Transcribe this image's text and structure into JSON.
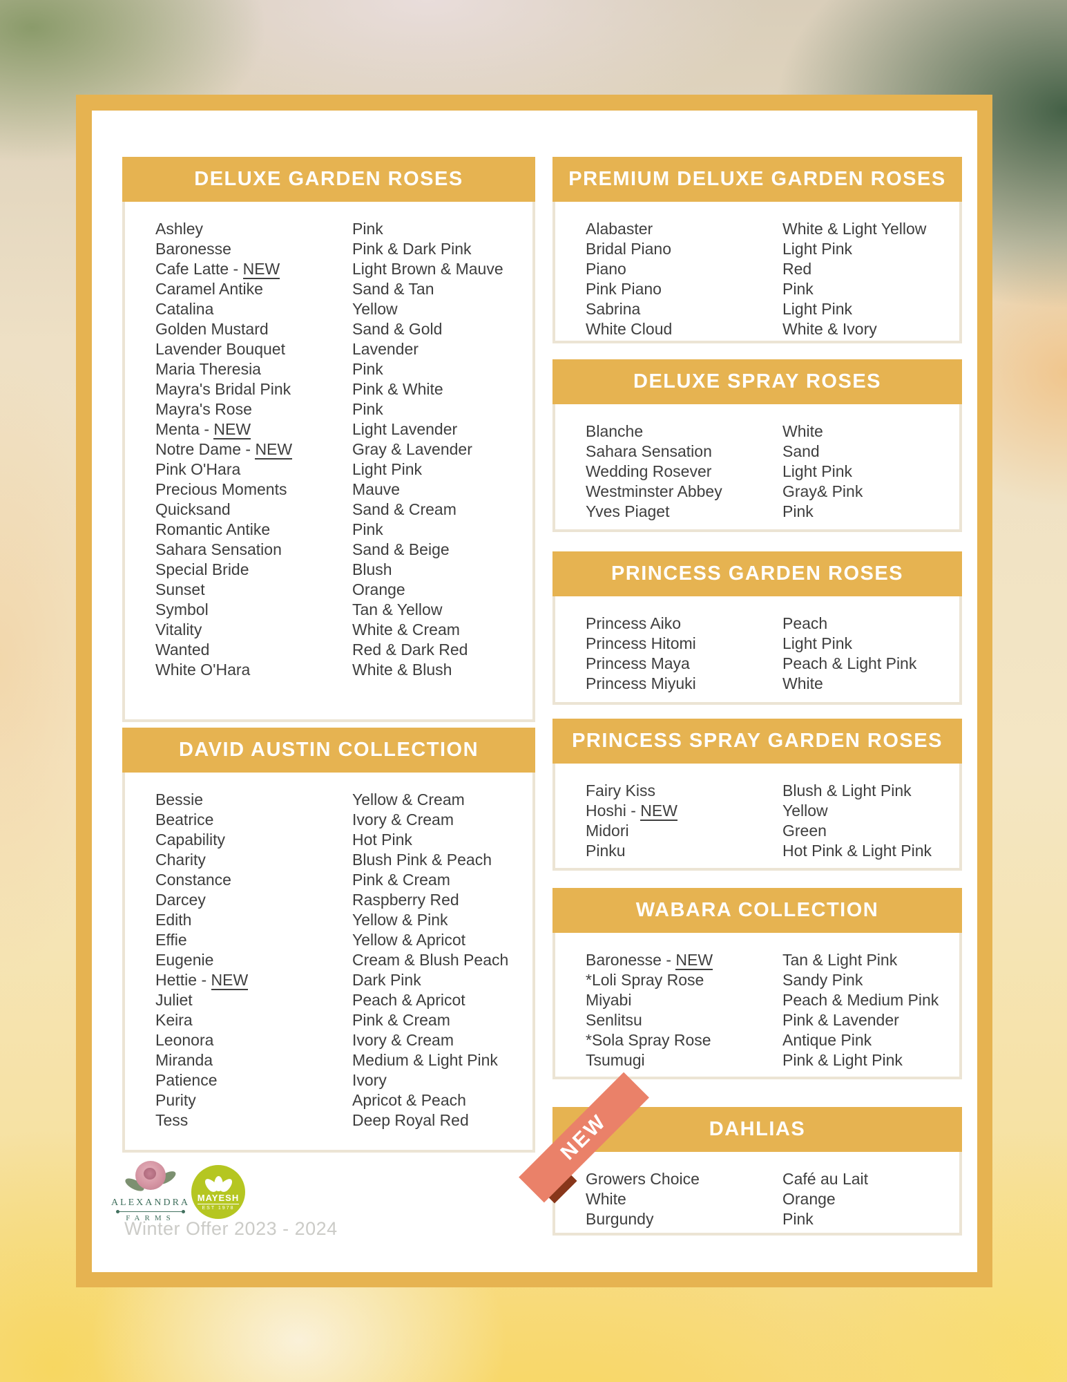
{
  "labels": {
    "new": "NEW"
  },
  "footer": {
    "note": "Winter Offer 2023 - 2024"
  },
  "logos": {
    "alexandra": {
      "line1": "ALEXANDRA",
      "line2": "FARMS"
    },
    "mayesh": {
      "name": "MAYESH",
      "est": "EST 1978"
    }
  },
  "ribbon": {
    "label": "NEW"
  },
  "theme": {
    "gold": "#E6B351",
    "box_border": "#ECE4D4",
    "body_text": "#3E3E3E",
    "header_text": "#FFFFFF",
    "ribbon_salmon": "#EA8169",
    "ribbon_fold": "#88361A",
    "footer_gray": "#CBCBC7",
    "mayesh_green": "#B5C621",
    "alexandra_green": "#41705E"
  },
  "sections": {
    "deluxe_garden_roses": {
      "title": "DELUXE GARDEN ROSES",
      "rows": [
        {
          "name": "Ashley",
          "color": "Pink"
        },
        {
          "name": "Baronesse",
          "color": "Pink & Dark Pink"
        },
        {
          "name": "Cafe Latte",
          "new": true,
          "color": "Light Brown & Mauve"
        },
        {
          "name": "Caramel Antike",
          "color": "Sand & Tan"
        },
        {
          "name": "Catalina",
          "color": "Yellow"
        },
        {
          "name": "Golden Mustard",
          "color": "Sand & Gold"
        },
        {
          "name": "Lavender Bouquet",
          "color": "Lavender"
        },
        {
          "name": "Maria Theresia",
          "color": "Pink"
        },
        {
          "name": "Mayra's Bridal Pink",
          "color": "Pink & White"
        },
        {
          "name": "Mayra's Rose",
          "color": "Pink"
        },
        {
          "name": "Menta",
          "new": true,
          "color": "Light Lavender"
        },
        {
          "name": "Notre Dame",
          "new": true,
          "color": "Gray & Lavender"
        },
        {
          "name": "Pink O'Hara",
          "color": "Light Pink"
        },
        {
          "name": "Precious Moments",
          "color": "Mauve"
        },
        {
          "name": "Quicksand",
          "color": "Sand & Cream"
        },
        {
          "name": "Romantic Antike",
          "color": "Pink"
        },
        {
          "name": "Sahara Sensation",
          "color": "Sand & Beige"
        },
        {
          "name": "Special Bride",
          "color": "Blush"
        },
        {
          "name": "Sunset",
          "color": "Orange"
        },
        {
          "name": "Symbol",
          "color": "Tan & Yellow"
        },
        {
          "name": "Vitality",
          "color": "White & Cream"
        },
        {
          "name": "Wanted",
          "color": "Red & Dark Red"
        },
        {
          "name": "White O'Hara",
          "color": "White & Blush"
        }
      ]
    },
    "premium_deluxe_garden_roses": {
      "title": "PREMIUM DELUXE GARDEN ROSES",
      "rows": [
        {
          "name": "Alabaster",
          "color": "White & Light Yellow"
        },
        {
          "name": "Bridal Piano",
          "color": "Light Pink"
        },
        {
          "name": "Piano",
          "color": "Red"
        },
        {
          "name": "Pink Piano",
          "color": "Pink"
        },
        {
          "name": "Sabrina",
          "color": "Light Pink"
        },
        {
          "name": "White Cloud",
          "color": "White & Ivory"
        }
      ]
    },
    "deluxe_spray_roses": {
      "title": "DELUXE SPRAY ROSES",
      "rows": [
        {
          "name": "Blanche",
          "color": "White"
        },
        {
          "name": "Sahara Sensation",
          "color": "Sand"
        },
        {
          "name": "Wedding Rosever",
          "color": "Light Pink"
        },
        {
          "name": "Westminster Abbey",
          "color": "Gray& Pink"
        },
        {
          "name": "Yves Piaget",
          "color": "Pink"
        }
      ]
    },
    "princess_garden_roses": {
      "title": "PRINCESS GARDEN ROSES",
      "rows": [
        {
          "name": "Princess Aiko",
          "color": "Peach"
        },
        {
          "name": "Princess Hitomi",
          "color": "Light Pink"
        },
        {
          "name": "Princess Maya",
          "color": "Peach & Light Pink"
        },
        {
          "name": "Princess Miyuki",
          "color": "White"
        }
      ]
    },
    "david_austin_collection": {
      "title": "DAVID AUSTIN COLLECTION",
      "rows": [
        {
          "name": "Bessie",
          "color": "Yellow & Cream"
        },
        {
          "name": "Beatrice",
          "color": "Ivory & Cream"
        },
        {
          "name": "Capability",
          "color": "Hot Pink"
        },
        {
          "name": "Charity",
          "color": "Blush Pink & Peach"
        },
        {
          "name": "Constance",
          "color": "Pink & Cream"
        },
        {
          "name": "Darcey",
          "color": "Raspberry Red"
        },
        {
          "name": "Edith",
          "color": "Yellow & Pink"
        },
        {
          "name": "Effie",
          "color": "Yellow & Apricot"
        },
        {
          "name": "Eugenie",
          "color": "Cream & Blush Peach"
        },
        {
          "name": "Hettie",
          "new": true,
          "color": "Dark Pink"
        },
        {
          "name": "Juliet",
          "color": "Peach & Apricot"
        },
        {
          "name": "Keira",
          "color": "Pink & Cream"
        },
        {
          "name": "Leonora",
          "color": "Ivory & Cream"
        },
        {
          "name": "Miranda",
          "color": "Medium & Light Pink"
        },
        {
          "name": "Patience",
          "color": "Ivory"
        },
        {
          "name": "Purity",
          "color": "Apricot & Peach"
        },
        {
          "name": "Tess",
          "color": "Deep Royal Red"
        }
      ]
    },
    "princess_spray_garden_roses": {
      "title": "PRINCESS SPRAY GARDEN ROSES",
      "rows": [
        {
          "name": "Fairy Kiss",
          "color": "Blush & Light Pink"
        },
        {
          "name": "Hoshi",
          "new": true,
          "color": "Yellow"
        },
        {
          "name": "Midori",
          "color": "Green"
        },
        {
          "name": "Pinku",
          "color": "Hot Pink & Light Pink"
        }
      ]
    },
    "wabara_collection": {
      "title": "WABARA COLLECTION",
      "rows": [
        {
          "name": "Baronesse",
          "new": true,
          "color": "Tan & Light Pink"
        },
        {
          "name": "*Loli Spray Rose",
          "color": "Sandy Pink"
        },
        {
          "name": "Miyabi",
          "color": "Peach & Medium Pink"
        },
        {
          "name": "Senlitsu",
          "color": "Pink & Lavender"
        },
        {
          "name": "*Sola Spray Rose",
          "color": "Antique Pink"
        },
        {
          "name": "Tsumugi",
          "color": "Pink & Light Pink"
        }
      ]
    },
    "dahlias": {
      "title": "DAHLIAS",
      "rows": [
        {
          "name": "Growers Choice",
          "color": "Café au Lait"
        },
        {
          "name": "White",
          "color": "Orange"
        },
        {
          "name": "Burgundy",
          "color": "Pink"
        }
      ]
    }
  }
}
